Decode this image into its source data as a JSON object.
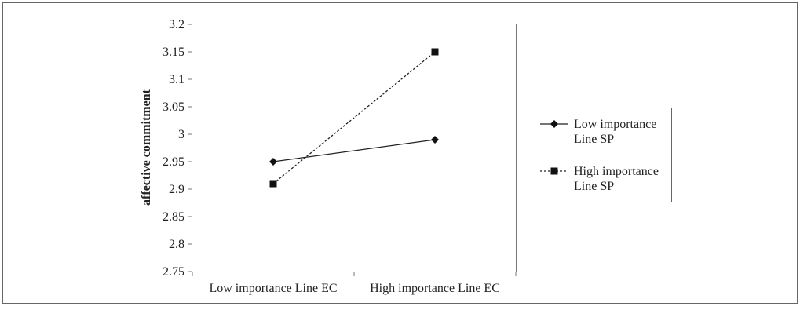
{
  "chart_data": {
    "type": "line",
    "title": "",
    "xlabel": "",
    "ylabel": "affective commitment",
    "categories": [
      "Low importance Line EC",
      "High importance Line EC"
    ],
    "ylim": [
      2.75,
      3.2
    ],
    "yticks": [
      "3.2",
      "3.15",
      "3.1",
      "3.05",
      "3",
      "2.95",
      "2.9",
      "2.85",
      "2.8",
      "2.75"
    ],
    "grid": false,
    "legend_position": "right",
    "series": [
      {
        "name_line1": "Low importance",
        "name_line2": "Line SP",
        "values": [
          2.95,
          2.99
        ],
        "marker": "diamond",
        "line_style": "solid"
      },
      {
        "name_line1": "High importance",
        "name_line2": "Line SP",
        "values": [
          2.91,
          3.15
        ],
        "marker": "square",
        "line_style": "dashed"
      }
    ]
  }
}
